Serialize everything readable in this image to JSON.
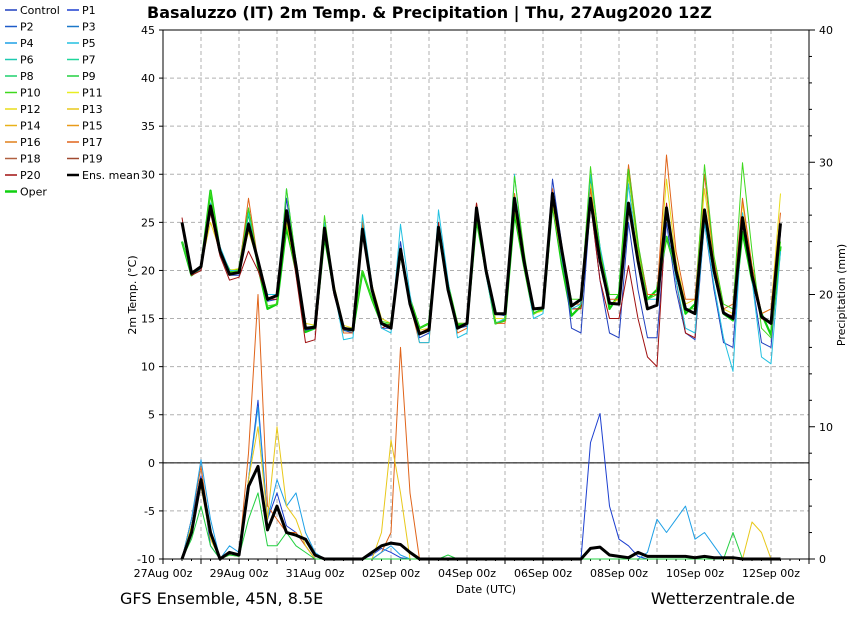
{
  "title": "Basaluzzo  (IT)  2m Temp. & Precipitation | Thu, 27Aug2020 12Z",
  "footer_left": "GFS Ensemble, 45N, 8.5E",
  "footer_right": "Wetterzentrale.de",
  "chart_data": {
    "type": "line",
    "xlabel": "Date (UTC)",
    "ylabel": "2m Temp. (°C)",
    "ylabel_right": "Precipitation (mm)",
    "ylim": [
      -10,
      45
    ],
    "ylim_right": [
      0,
      40
    ],
    "yticks": [
      -10,
      -5,
      0,
      5,
      10,
      15,
      20,
      25,
      30,
      35,
      40,
      45
    ],
    "yticks_right": [
      0,
      10,
      20,
      30,
      40
    ],
    "xticks": [
      "27Aug 00z",
      "29Aug 00z",
      "31Aug 00z",
      "02Sep 00z",
      "04Sep 00z",
      "06Sep 00z",
      "08Sep 00z",
      "10Sep 00z",
      "12Sep 00z"
    ],
    "x_range_hours": [
      0,
      408
    ],
    "start_hour": 12,
    "step_hours": 6,
    "grid": true,
    "legend_placement": "top-left outside",
    "legend": [
      {
        "name": "Control",
        "color": "#1f3fbf"
      },
      {
        "name": "P1",
        "color": "#1c3fd0"
      },
      {
        "name": "P2",
        "color": "#1e5bc8"
      },
      {
        "name": "P3",
        "color": "#1d78c8"
      },
      {
        "name": "P4",
        "color": "#1ea0e6"
      },
      {
        "name": "P5",
        "color": "#22c0e0"
      },
      {
        "name": "P6",
        "color": "#1ec9b0"
      },
      {
        "name": "P7",
        "color": "#1fd69a"
      },
      {
        "name": "P8",
        "color": "#1ed06e"
      },
      {
        "name": "P9",
        "color": "#22d040"
      },
      {
        "name": "P10",
        "color": "#3fd81e"
      },
      {
        "name": "P11",
        "color": "#e8ee22"
      },
      {
        "name": "P12",
        "color": "#e8dc1a"
      },
      {
        "name": "P13",
        "color": "#e8c81a"
      },
      {
        "name": "P14",
        "color": "#e8b21a"
      },
      {
        "name": "P15",
        "color": "#e89a1a"
      },
      {
        "name": "P16",
        "color": "#e0801a"
      },
      {
        "name": "P17",
        "color": "#e0641a"
      },
      {
        "name": "P18",
        "color": "#b06040"
      },
      {
        "name": "P19",
        "color": "#a04a30"
      },
      {
        "name": "P20",
        "color": "#a01010"
      },
      {
        "name": "Ens. mean",
        "color": "#000000"
      },
      {
        "name": "Oper",
        "color": "#10d010"
      }
    ],
    "series": [
      {
        "name": "Ens. mean",
        "axis": "left",
        "color": "#000000",
        "values": [
          25,
          19.7,
          20.4,
          26.7,
          22,
          19.6,
          19.8,
          24.8,
          21,
          17,
          17.4,
          26.2,
          20.5,
          14,
          14.1,
          24.4,
          18,
          14,
          13.8,
          24.3,
          18,
          14.5,
          14,
          22.2,
          16.5,
          13.4,
          13.8,
          24.5,
          18,
          14,
          14.5,
          26.5,
          20,
          15.5,
          15.5,
          27.5,
          21,
          16,
          16.1,
          28,
          22,
          16.3,
          17,
          27.5,
          21,
          16.6,
          16.5,
          27,
          21,
          16,
          16.4,
          26.5,
          20,
          16,
          15.5,
          26.3,
          20,
          15.6,
          15,
          25.5,
          19.5,
          15.2,
          14.5,
          24.9
        ]
      },
      {
        "name": "Oper",
        "axis": "left",
        "color": "#10d010",
        "values": [
          23,
          19.5,
          20.3,
          28.3,
          22,
          20,
          20,
          26.2,
          20.5,
          16,
          16.5,
          24.5,
          20,
          13.6,
          14,
          23.5,
          18,
          13.8,
          13.8,
          19.9,
          17,
          14.5,
          14.3,
          21.8,
          17,
          14,
          14.5,
          24,
          18.5,
          14.3,
          14.5,
          25.3,
          20,
          14.5,
          14.8,
          26,
          20.5,
          15.5,
          16,
          27,
          20.5,
          15.3,
          16.3,
          29.5,
          22,
          16,
          17.5,
          30.5,
          22.5,
          17,
          18,
          23.5,
          20,
          15.5,
          16.5,
          25.5,
          20,
          15.5,
          14.8,
          24,
          19,
          15.5,
          13.3,
          22.5
        ]
      },
      {
        "name": "Control",
        "axis": "left",
        "color": "#1f3fbf",
        "values": [
          25,
          19.6,
          20.2,
          27,
          22.2,
          19.5,
          19.5,
          25,
          21,
          16.8,
          17,
          27.5,
          20.5,
          13.8,
          14,
          24,
          17.5,
          13.8,
          13.5,
          24.4,
          18,
          14,
          14,
          23,
          16.5,
          13,
          13.5,
          24.5,
          18,
          14,
          14.2,
          26.5,
          20,
          15.5,
          15.3,
          27.5,
          21,
          16,
          16,
          29.5,
          22.5,
          14,
          13.5,
          27,
          19,
          13.5,
          13,
          25,
          18,
          13,
          13,
          25,
          18,
          13.5,
          12.8,
          25,
          18,
          12.5,
          12,
          25.5,
          19,
          12.5,
          12,
          24
        ]
      },
      {
        "name": "P12",
        "axis": "left",
        "color": "#e8dc1a",
        "values": [
          25,
          19.8,
          20.5,
          25,
          22,
          20,
          20.2,
          24,
          21,
          17.5,
          17.5,
          25,
          20,
          14.5,
          14.3,
          24.5,
          18.5,
          14.3,
          14,
          25.5,
          18.5,
          15,
          14.5,
          21.8,
          17,
          13.8,
          14,
          24,
          18,
          14.5,
          14.5,
          26,
          19.5,
          15,
          15,
          26.5,
          20.5,
          15.5,
          15.8,
          27,
          21,
          16,
          16,
          29,
          22,
          16.5,
          17,
          30,
          22,
          17,
          17.5,
          29.5,
          21,
          16.5,
          17,
          28.5,
          21,
          16,
          15.5,
          27,
          20.5,
          15.5,
          16,
          28
        ]
      },
      {
        "name": "P17",
        "axis": "left",
        "color": "#e0641a",
        "values": [
          25,
          19.8,
          20.4,
          26.5,
          22,
          19.8,
          20,
          27.5,
          21,
          17.5,
          17.5,
          26,
          20.5,
          14,
          14,
          24,
          18,
          13.5,
          13.5,
          25,
          18.5,
          14.5,
          14,
          22,
          16.5,
          12.5,
          12.5,
          25,
          18,
          13.5,
          14,
          27,
          20,
          14.5,
          14.5,
          28,
          21,
          16,
          16,
          28.5,
          21.5,
          16.5,
          16.5,
          28.5,
          21,
          17,
          17,
          31,
          22.5,
          17.5,
          17.5,
          32,
          22,
          17,
          17,
          30,
          21,
          16,
          16.5,
          27.5,
          20.5,
          15.5,
          16,
          26
        ]
      },
      {
        "name": "P20",
        "axis": "left",
        "color": "#a01010",
        "values": [
          25.5,
          19.5,
          20,
          26,
          21.5,
          19,
          19.3,
          22,
          20,
          17,
          17,
          26,
          19.5,
          12.5,
          12.8,
          24,
          17.5,
          14,
          14,
          24,
          18,
          14,
          14.5,
          22,
          17,
          13.5,
          14,
          25,
          18,
          14.5,
          14.5,
          27,
          20,
          15.5,
          15.5,
          27,
          21,
          16,
          16.2,
          27.5,
          21,
          16,
          16,
          27,
          19,
          15,
          15,
          20.5,
          15,
          11,
          10,
          27,
          19,
          13.5,
          13,
          26,
          19.5,
          15.5,
          15.3,
          25,
          19,
          15,
          14.5,
          24
        ]
      },
      {
        "name": "P5",
        "axis": "left",
        "color": "#22c0e0",
        "values": [
          23,
          19.7,
          20.5,
          27,
          22.5,
          20,
          20,
          26,
          21,
          17.5,
          17.5,
          28.5,
          21,
          14,
          14,
          25,
          18,
          12.8,
          13,
          25.8,
          18.5,
          14,
          13.5,
          24.8,
          17.5,
          12.5,
          12.5,
          26.3,
          19,
          13,
          13.5,
          26,
          19.5,
          14.5,
          15,
          30,
          21,
          15,
          15.5,
          28,
          21,
          16,
          16.5,
          30,
          22.5,
          17.5,
          17.5,
          29,
          21,
          17,
          17,
          26,
          19,
          14,
          13.5,
          25,
          18.5,
          13,
          9.5,
          26,
          19,
          11,
          10.3,
          22
        ]
      },
      {
        "name": "P10",
        "axis": "left",
        "color": "#3fd81e",
        "values": [
          23,
          19.7,
          20.3,
          28.2,
          22,
          19.8,
          20,
          26.5,
          21,
          16.3,
          16.5,
          28.5,
          21,
          14,
          14.3,
          25.7,
          18,
          14,
          14,
          20,
          17,
          14.7,
          14.5,
          22.3,
          17,
          14,
          14.5,
          24.3,
          18.5,
          14.5,
          14.5,
          25.3,
          20,
          14.5,
          14.8,
          29.8,
          22,
          15.5,
          16,
          27.5,
          21.5,
          17,
          17,
          30.8,
          22,
          17.5,
          17.5,
          30.5,
          22.5,
          17,
          17.5,
          23.5,
          20,
          16,
          16,
          31,
          21.5,
          16.5,
          16,
          31.2,
          22,
          14,
          13,
          23
        ]
      }
    ],
    "precip_series": [
      {
        "name": "Ens. mean",
        "axis": "right",
        "color": "#000000",
        "values": [
          0,
          2,
          6,
          2,
          0,
          0.5,
          0.3,
          5.5,
          7,
          2.2,
          4,
          2,
          1.8,
          1.5,
          0.3,
          0,
          0,
          0,
          0,
          0,
          0.5,
          1,
          1.2,
          1.1,
          0.5,
          0,
          0,
          0,
          0,
          0,
          0,
          0,
          0,
          0,
          0,
          0,
          0,
          0,
          0,
          0,
          0,
          0,
          0,
          0.8,
          0.9,
          0.3,
          0.2,
          0.1,
          0.5,
          0.2,
          0.2,
          0.2,
          0.2,
          0.2,
          0.1,
          0.2,
          0.1,
          0.1,
          0.1,
          0,
          0,
          0,
          0,
          0
        ]
      },
      {
        "name": "P1",
        "axis": "right",
        "color": "#1c3fd0",
        "values": [
          0,
          3,
          6.3,
          1,
          0,
          0.4,
          0.2,
          6,
          12,
          3,
          5,
          2.5,
          2,
          1,
          0,
          0,
          0,
          0,
          0,
          0,
          0.3,
          0.8,
          0.5,
          0.1,
          0,
          0,
          0,
          0,
          0,
          0,
          0,
          0,
          0,
          0,
          0,
          0,
          0,
          0,
          0,
          0,
          0,
          0,
          0,
          8.8,
          11,
          4,
          1.5,
          1,
          0.2,
          0,
          0,
          0,
          0,
          0,
          0,
          0,
          0,
          0,
          0,
          0,
          0,
          0,
          0,
          0
        ]
      },
      {
        "name": "P17",
        "axis": "right",
        "color": "#e0641a",
        "values": [
          0,
          3,
          7,
          2,
          0,
          0.5,
          0.3,
          8,
          20,
          4,
          3,
          2,
          2,
          1,
          0,
          0,
          0,
          0,
          0,
          0,
          0,
          0.5,
          2,
          16,
          5,
          0,
          0,
          0,
          0,
          0,
          0,
          0,
          0,
          0,
          0,
          0,
          0,
          0,
          0,
          0,
          0,
          0,
          0,
          0,
          0,
          0,
          0,
          0,
          0,
          0,
          0,
          0,
          0,
          0,
          0,
          0,
          0,
          0,
          0,
          0,
          0,
          0,
          0,
          0
        ]
      },
      {
        "name": "P4",
        "axis": "right",
        "color": "#1ea0e6",
        "values": [
          0,
          3,
          7.5,
          3,
          0,
          1,
          0.5,
          6,
          11.5,
          3,
          6,
          4,
          5,
          2,
          0.5,
          0,
          0,
          0,
          0,
          0,
          0,
          0.5,
          1,
          0.3,
          0,
          0,
          0,
          0,
          0,
          0,
          0,
          0,
          0,
          0,
          0,
          0,
          0,
          0,
          0,
          0,
          0,
          0,
          0,
          0,
          0,
          0,
          0,
          0,
          0,
          0.5,
          3,
          2,
          3,
          4,
          1.5,
          2,
          1,
          0,
          0,
          0,
          0,
          0,
          0,
          0
        ]
      },
      {
        "name": "P13",
        "axis": "right",
        "color": "#e8c81a",
        "values": [
          0,
          2.5,
          5.5,
          1.5,
          0,
          0.3,
          0.2,
          6,
          10,
          3,
          10,
          4,
          3,
          1,
          0,
          0,
          0,
          0,
          0,
          0,
          0,
          2,
          9,
          5,
          0,
          0,
          0,
          0,
          0,
          0,
          0,
          0,
          0,
          0,
          0,
          0,
          0,
          0,
          0,
          0,
          0,
          0,
          0,
          0,
          0,
          0,
          0,
          0,
          0,
          0,
          0,
          0,
          0,
          0,
          0,
          0,
          0,
          0,
          0,
          0,
          2.8,
          2,
          0,
          0
        ]
      },
      {
        "name": "P9",
        "axis": "right",
        "color": "#22d040",
        "values": [
          0,
          1.5,
          4,
          1,
          0,
          0.3,
          0.2,
          3,
          5,
          1,
          1,
          2,
          1,
          0.5,
          0,
          0,
          0,
          0,
          0,
          0,
          0,
          0,
          0,
          0,
          0,
          0,
          0,
          0,
          0.3,
          0,
          0,
          0,
          0,
          0,
          0,
          0,
          0,
          0,
          0,
          0,
          0,
          0,
          0,
          0,
          0,
          0,
          0,
          0,
          0,
          0,
          0,
          0,
          0,
          0,
          0,
          0,
          0,
          0,
          2,
          0,
          0,
          0,
          0,
          0
        ]
      }
    ]
  }
}
